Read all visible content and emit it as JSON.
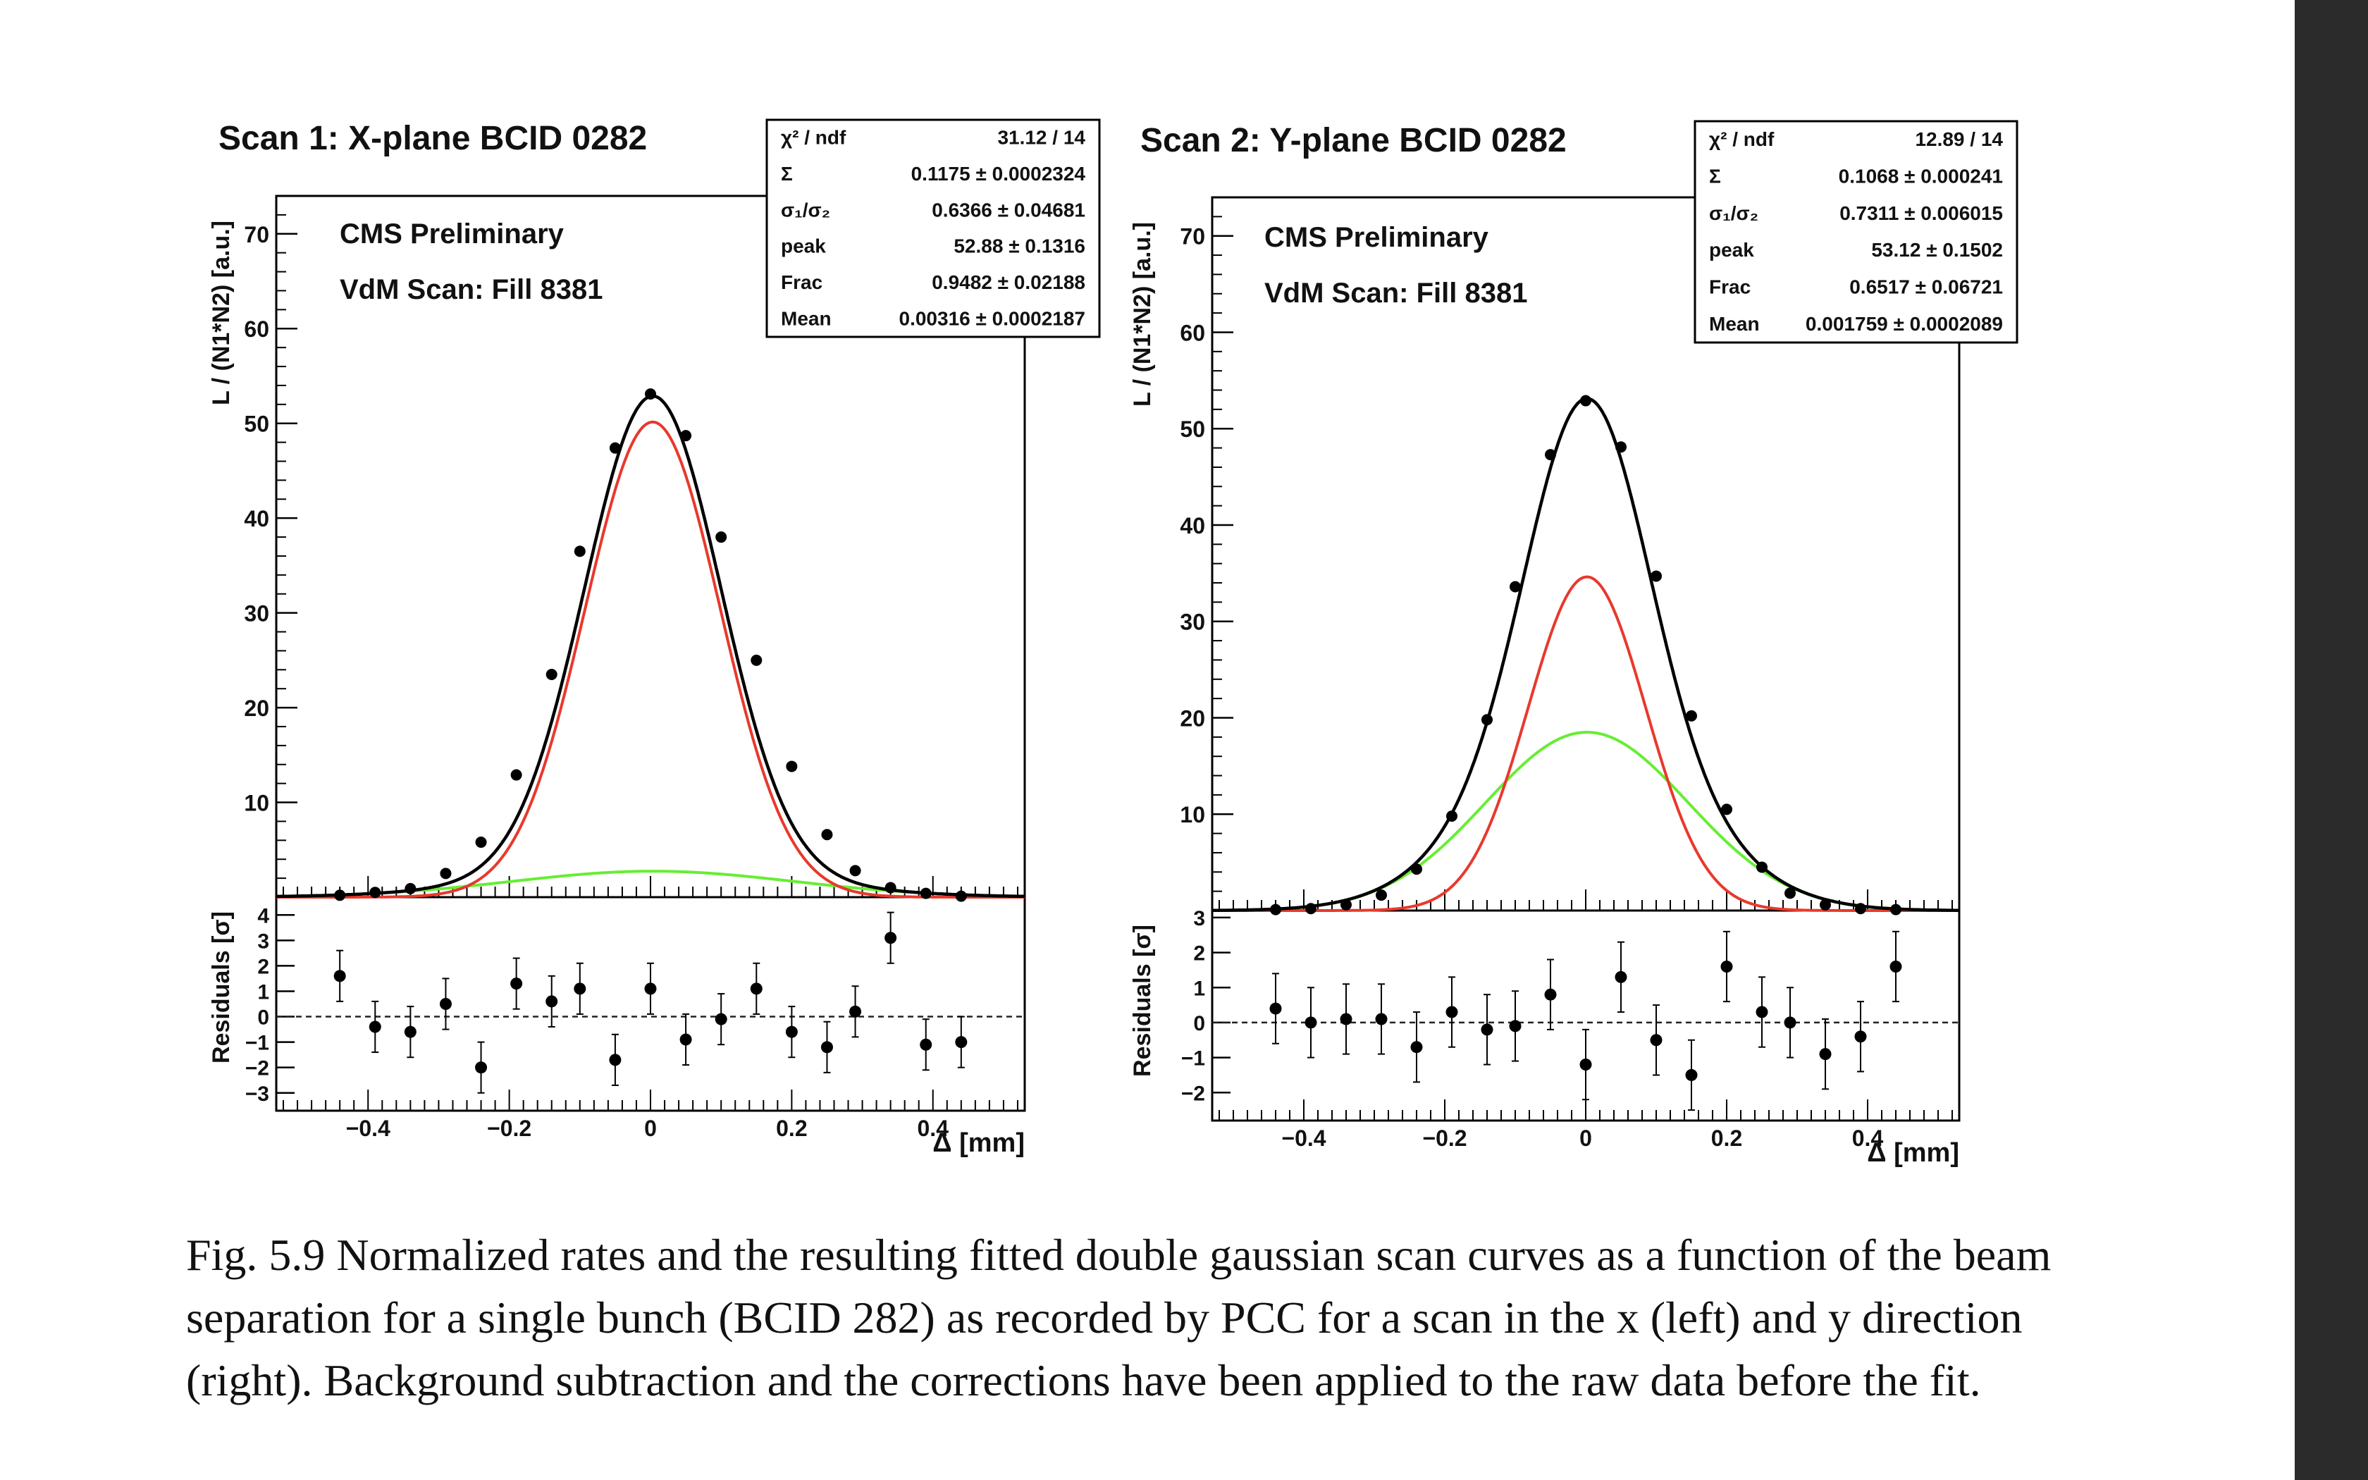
{
  "colors": {
    "data": "#000000",
    "total_fit": "#000000",
    "component_1": "#e8392c",
    "component_2": "#66ee33"
  },
  "caption": "Fig. 5.9 Normalized rates and the resulting fitted double gaussian scan curves as a function of the beam separation for a single bunch (BCID 282) as recorded by PCC for a scan in the x (left) and y direction (right). Background subtraction and the corrections have been applied to the raw data before the fit.",
  "chart_data": [
    {
      "type": "scatter",
      "title": "Scan 1: X-plane BCID 0282",
      "annotation_lines": [
        "CMS Preliminary",
        "VdM Scan: Fill 8381"
      ],
      "xlabel": "Δ [mm]",
      "ylabel": "L / (N1*N2) [a.u.]",
      "residual_ylabel": "Residuals [σ]",
      "xlim": [
        -0.53,
        0.53
      ],
      "ylim": [
        0,
        74
      ],
      "residual_ylim": [
        -3.7,
        4.7
      ],
      "xticks": [
        -0.4,
        -0.2,
        0,
        0.2,
        0.4
      ],
      "xtick_labels": [
        "−0.4",
        "−0.2",
        "0",
        "0.2",
        "0.4"
      ],
      "yticks": [
        10,
        20,
        30,
        40,
        50,
        60,
        70
      ],
      "ytick_labels": [
        "10",
        "20",
        "30",
        "40",
        "50",
        "60",
        "70"
      ],
      "residual_ticks": [
        -3,
        -2,
        -1,
        0,
        1,
        2,
        3,
        4
      ],
      "residual_tick_labels": [
        "−3",
        "−2",
        "−1",
        "0",
        "1",
        "2",
        "3",
        "4"
      ],
      "fit_stats": [
        {
          "name": "χ² / ndf",
          "value": "31.12 / 14"
        },
        {
          "name": "Σ",
          "value": "0.1175 ± 0.0002324"
        },
        {
          "name": "σ₁/σ₂",
          "value": "0.6366 ± 0.04681"
        },
        {
          "name": "peak",
          "value": "52.88 ± 0.1316"
        },
        {
          "name": "Frac",
          "value": "0.9482 ± 0.02188"
        },
        {
          "name": "Mean",
          "value": "0.00316 ± 0.0002187"
        }
      ],
      "points": {
        "x": [
          -0.44,
          -0.39,
          -0.34,
          -0.29,
          -0.24,
          -0.19,
          -0.14,
          -0.1,
          -0.05,
          0.0,
          0.05,
          0.1,
          0.15,
          0.2,
          0.25,
          0.29,
          0.34,
          0.39,
          0.44
        ],
        "y": [
          0.2,
          0.5,
          0.9,
          2.5,
          5.8,
          12.9,
          23.5,
          36.5,
          47.4,
          53.1,
          48.7,
          38.0,
          25.0,
          13.8,
          6.6,
          2.8,
          1.0,
          0.4,
          0.1
        ],
        "y_err": [
          0.1,
          0.1,
          0.1,
          0.15,
          0.2,
          0.3,
          0.35,
          0.4,
          0.45,
          0.45,
          0.45,
          0.4,
          0.35,
          0.3,
          0.2,
          0.15,
          0.1,
          0.1,
          0.1
        ]
      },
      "residuals": {
        "x": [
          -0.44,
          -0.39,
          -0.34,
          -0.29,
          -0.24,
          -0.19,
          -0.14,
          -0.1,
          -0.05,
          0.0,
          0.05,
          0.1,
          0.15,
          0.2,
          0.25,
          0.29,
          0.34,
          0.39,
          0.44
        ],
        "y": [
          1.6,
          -0.4,
          -0.6,
          0.5,
          -2.0,
          1.3,
          0.6,
          1.1,
          -1.7,
          1.1,
          -0.9,
          -0.1,
          1.1,
          -0.6,
          -1.2,
          0.2,
          3.1,
          -1.1,
          -1.0
        ],
        "y_err": [
          1,
          1,
          1,
          1,
          1,
          1,
          1,
          1,
          1,
          1,
          1,
          1,
          1,
          1,
          1,
          1,
          1,
          1,
          1
        ]
      },
      "series": [
        {
          "role": "total",
          "color": "#000000",
          "model": {
            "mean": 0.00316,
            "peak": 52.88,
            "frac": 0.9482,
            "sigma1": 0.0958,
            "sigma2": 0.2
          }
        },
        {
          "role": "component_1",
          "color": "#e8392c",
          "model": {
            "mean": 0.00316,
            "amp": 50.14,
            "sigma": 0.0958
          }
        },
        {
          "role": "component_2",
          "color": "#66ee33",
          "model": {
            "mean": 0.00316,
            "amp": 2.74,
            "sigma": 0.2
          }
        }
      ]
    },
    {
      "type": "scatter",
      "title": "Scan 2: Y-plane BCID 0282",
      "annotation_lines": [
        "CMS Preliminary",
        "VdM Scan: Fill 8381"
      ],
      "xlabel": "Δ [mm]",
      "ylabel": "L / (N1*N2) [a.u.]",
      "residual_ylabel": "Residuals [σ]",
      "xlim": [
        -0.53,
        0.53
      ],
      "ylim": [
        0,
        74
      ],
      "residual_ylim": [
        -2.8,
        3.2
      ],
      "xticks": [
        -0.4,
        -0.2,
        0,
        0.2,
        0.4
      ],
      "xtick_labels": [
        "−0.4",
        "−0.2",
        "0",
        "0.2",
        "0.4"
      ],
      "yticks": [
        10,
        20,
        30,
        40,
        50,
        60,
        70
      ],
      "ytick_labels": [
        "10",
        "20",
        "30",
        "40",
        "50",
        "60",
        "70"
      ],
      "residual_ticks": [
        -2,
        -1,
        0,
        1,
        2,
        3
      ],
      "residual_tick_labels": [
        "−2",
        "−1",
        "0",
        "1",
        "2",
        "3"
      ],
      "fit_stats": [
        {
          "name": "χ² / ndf",
          "value": "12.89 / 14"
        },
        {
          "name": "Σ",
          "value": "0.1068 ± 0.000241"
        },
        {
          "name": "σ₁/σ₂",
          "value": "0.7311 ± 0.006015"
        },
        {
          "name": "peak",
          "value": "53.12 ± 0.1502"
        },
        {
          "name": "Frac",
          "value": "0.6517 ± 0.06721"
        },
        {
          "name": "Mean",
          "value": "0.001759 ± 0.0002089"
        }
      ],
      "points": {
        "x": [
          -0.44,
          -0.39,
          -0.34,
          -0.29,
          -0.24,
          -0.19,
          -0.14,
          -0.1,
          -0.05,
          0.0,
          0.05,
          0.1,
          0.15,
          0.2,
          0.25,
          0.29,
          0.34,
          0.39,
          0.44
        ],
        "y": [
          0.1,
          0.2,
          0.6,
          1.6,
          4.3,
          9.8,
          19.8,
          33.6,
          47.3,
          52.9,
          48.1,
          34.7,
          20.2,
          10.5,
          4.5,
          1.8,
          0.6,
          0.2,
          0.1
        ],
        "y_err": [
          0.1,
          0.1,
          0.1,
          0.1,
          0.2,
          0.25,
          0.35,
          0.4,
          0.45,
          0.45,
          0.45,
          0.4,
          0.35,
          0.25,
          0.2,
          0.1,
          0.1,
          0.1,
          0.1
        ]
      },
      "residuals": {
        "x": [
          -0.44,
          -0.39,
          -0.34,
          -0.29,
          -0.24,
          -0.19,
          -0.14,
          -0.1,
          -0.05,
          0.0,
          0.05,
          0.1,
          0.15,
          0.2,
          0.25,
          0.29,
          0.34,
          0.39,
          0.44
        ],
        "y": [
          0.4,
          0.0,
          0.1,
          0.1,
          -0.7,
          0.3,
          -0.2,
          -0.1,
          0.8,
          -1.2,
          1.3,
          -0.5,
          -1.5,
          1.6,
          0.3,
          0.0,
          -0.9,
          -0.4,
          1.6
        ],
        "y_err": [
          1,
          1,
          1,
          1,
          1,
          1,
          1,
          1,
          1,
          1,
          1,
          1,
          1,
          1,
          1,
          1,
          1,
          1,
          1
        ]
      },
      "series": [
        {
          "role": "total",
          "color": "#000000",
          "model": {
            "mean": 0.001759,
            "peak": 53.12,
            "frac": 0.6517,
            "sigma1": 0.0836,
            "sigma2": 0.1434
          }
        },
        {
          "role": "component_1",
          "color": "#e8392c",
          "model": {
            "mean": 0.001759,
            "amp": 34.62,
            "sigma": 0.0836
          }
        },
        {
          "role": "component_2",
          "color": "#66ee33",
          "model": {
            "mean": 0.001759,
            "amp": 18.5,
            "sigma": 0.1434
          }
        }
      ]
    }
  ]
}
